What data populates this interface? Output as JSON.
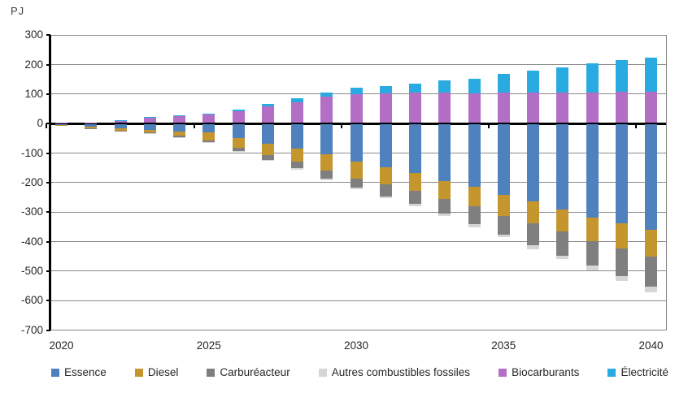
{
  "chart_data": {
    "type": "bar",
    "stacked": true,
    "title": "",
    "ylabel": "PJ",
    "xlabel": "",
    "ylim": [
      -700,
      300
    ],
    "ytick_step": 100,
    "grid": true,
    "legend_position": "bottom",
    "x": [
      2020,
      2021,
      2022,
      2023,
      2024,
      2025,
      2026,
      2027,
      2028,
      2029,
      2030,
      2031,
      2032,
      2033,
      2034,
      2035,
      2036,
      2037,
      2038,
      2039,
      2040
    ],
    "x_tick_labels": [
      "2020",
      "2025",
      "2030",
      "2035",
      "2040"
    ],
    "series": [
      {
        "name": "Essence",
        "color": "#4E81BD",
        "stack": "negative",
        "values": [
          -3,
          -8,
          -13,
          -18,
          -23,
          -26,
          -45,
          -65,
          -81,
          -102,
          -127,
          -145,
          -165,
          -193,
          -212,
          -240,
          -262,
          -287,
          -315,
          -335,
          -358
        ]
      },
      {
        "name": "Diesel",
        "color": "#C5962D",
        "stack": "negative",
        "values": [
          -2,
          -4,
          -7,
          -10,
          -16,
          -27,
          -35,
          -38,
          -46,
          -55,
          -56,
          -57,
          -60,
          -60,
          -66,
          -69,
          -72,
          -76,
          -80,
          -85,
          -90
        ]
      },
      {
        "name": "Carburéacteur",
        "color": "#7F7F7F",
        "stack": "negative",
        "values": [
          0,
          -1,
          -1,
          -2,
          -4,
          -7,
          -9,
          -17,
          -21,
          -27,
          -30,
          -41,
          -44,
          -50,
          -60,
          -64,
          -76,
          -81,
          -84,
          -95,
          -103
        ]
      },
      {
        "name": "Autres combustibles fossiles",
        "color": "#D6D6D6",
        "stack": "negative",
        "values": [
          0,
          0,
          0,
          -1,
          -1,
          -1,
          -2,
          -4,
          -5,
          -6,
          -5,
          -6,
          -7,
          -8,
          -10,
          -9,
          -12,
          -13,
          -16,
          -16,
          -17
        ]
      },
      {
        "name": "Biocarburants",
        "color": "#B36EC6",
        "stack": "positive",
        "values": [
          1,
          2,
          8,
          17,
          22,
          28,
          40,
          55,
          70,
          88,
          98,
          100,
          102,
          102,
          100,
          102,
          102,
          103,
          104,
          105,
          105
        ]
      },
      {
        "name": "Électricité",
        "color": "#29ABE2",
        "stack": "positive",
        "values": [
          0,
          0,
          1,
          2,
          3,
          4,
          6,
          8,
          13,
          15,
          20,
          25,
          31,
          41,
          50,
          63,
          74,
          86,
          97,
          107,
          117
        ]
      }
    ]
  }
}
